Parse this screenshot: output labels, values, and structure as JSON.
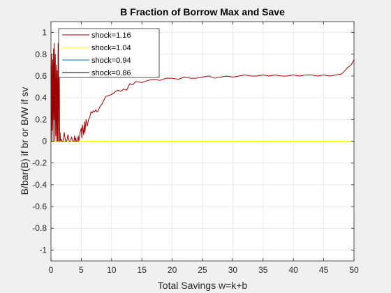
{
  "chart_data": {
    "type": "line",
    "title": "B Fraction of Borrow Max and Save",
    "xlabel": "Total Savings w=k+b",
    "ylabel": "B/bar(B) if br or B/W if sv",
    "xlim": [
      0,
      50
    ],
    "ylim": [
      -1.1,
      1.1
    ],
    "xticks": [
      0,
      5,
      10,
      15,
      20,
      25,
      30,
      35,
      40,
      45,
      50
    ],
    "yticks": [
      -1,
      -0.8,
      -0.6,
      -0.4,
      -0.2,
      0,
      0.2,
      0.4,
      0.6,
      0.8,
      1
    ],
    "xtick_labels": [
      "0",
      "5",
      "10",
      "15",
      "20",
      "25",
      "30",
      "35",
      "40",
      "45",
      "50"
    ],
    "ytick_labels": [
      "-1",
      "-0.8",
      "-0.6",
      "-0.4",
      "-0.2",
      "0",
      "0.2",
      "0.4",
      "0.6",
      "0.8",
      "1"
    ],
    "grid": true,
    "legend_position": "top-left",
    "series": [
      {
        "name": "shock=1.16",
        "color": "#a00000",
        "x": [
          0,
          0.05,
          0.12,
          0.2,
          0.28,
          0.35,
          0.42,
          0.5,
          0.58,
          0.65,
          0.72,
          0.8,
          0.88,
          0.95,
          1.02,
          1.1,
          1.18,
          1.25,
          1.35,
          1.45,
          1.5,
          1.6,
          1.7,
          1.8,
          2.0,
          2.2,
          2.4,
          2.6,
          2.8,
          3.0,
          3.2,
          3.4,
          3.6,
          3.8,
          3.9,
          4.0,
          4.1,
          4.2,
          4.4,
          4.5,
          4.6,
          4.8,
          5.0,
          5.1,
          5.2,
          5.4,
          5.5,
          5.6,
          5.8,
          6.0,
          6.2,
          6.4,
          6.6,
          6.8,
          7.0,
          7.2,
          7.4,
          7.6,
          7.8,
          8.0,
          8.5,
          9.0,
          9.5,
          10.0,
          10.5,
          11.0,
          11.5,
          12.0,
          12.5,
          13.0,
          13.5,
          14.0,
          15.0,
          16.0,
          17.0,
          18.0,
          19.0,
          20.0,
          21.0,
          22.0,
          23.0,
          24.0,
          25.0,
          26.0,
          27.0,
          28.0,
          29.0,
          30.0,
          31.0,
          32.0,
          33.0,
          34.0,
          35.0,
          36.0,
          37.0,
          38.0,
          39.0,
          40.0,
          41.0,
          42.0,
          43.0,
          44.0,
          45.0,
          46.0,
          47.0,
          48.0,
          48.5,
          49.0,
          49.5,
          50.0
        ],
        "y": [
          0.7,
          0.0,
          0.8,
          0.1,
          0.75,
          0.0,
          0.85,
          0.2,
          0.9,
          0.0,
          0.8,
          0.05,
          0.7,
          0.0,
          0.65,
          0.0,
          0.9,
          0.0,
          0.85,
          0.0,
          0.08,
          0.0,
          0.02,
          0.0,
          0.0,
          0.08,
          0.0,
          0.0,
          0.06,
          0.0,
          0.0,
          0.04,
          0.0,
          0.0,
          0.05,
          0.0,
          0.03,
          0.0,
          0.0,
          0.05,
          0.0,
          0.08,
          0.12,
          0.03,
          0.15,
          0.06,
          0.18,
          0.08,
          0.2,
          0.14,
          0.2,
          0.22,
          0.27,
          0.26,
          0.28,
          0.27,
          0.29,
          0.27,
          0.28,
          0.31,
          0.35,
          0.41,
          0.42,
          0.43,
          0.45,
          0.47,
          0.46,
          0.48,
          0.47,
          0.53,
          0.52,
          0.55,
          0.54,
          0.56,
          0.57,
          0.56,
          0.58,
          0.58,
          0.57,
          0.59,
          0.58,
          0.58,
          0.59,
          0.6,
          0.58,
          0.59,
          0.6,
          0.59,
          0.6,
          0.61,
          0.6,
          0.6,
          0.61,
          0.6,
          0.61,
          0.6,
          0.6,
          0.61,
          0.6,
          0.61,
          0.61,
          0.6,
          0.61,
          0.6,
          0.61,
          0.62,
          0.65,
          0.68,
          0.7,
          0.75
        ]
      },
      {
        "name": "shock=1.04",
        "color": "#ffff00",
        "x": [
          0,
          50
        ],
        "y": [
          0,
          0
        ]
      },
      {
        "name": "shock=0.94",
        "color": "#0072bd",
        "x": [
          0,
          50
        ],
        "y": [
          0,
          0
        ]
      },
      {
        "name": "shock=0.86",
        "color": "#000000",
        "x": [
          0,
          50
        ],
        "y": [
          0,
          0
        ]
      }
    ]
  }
}
